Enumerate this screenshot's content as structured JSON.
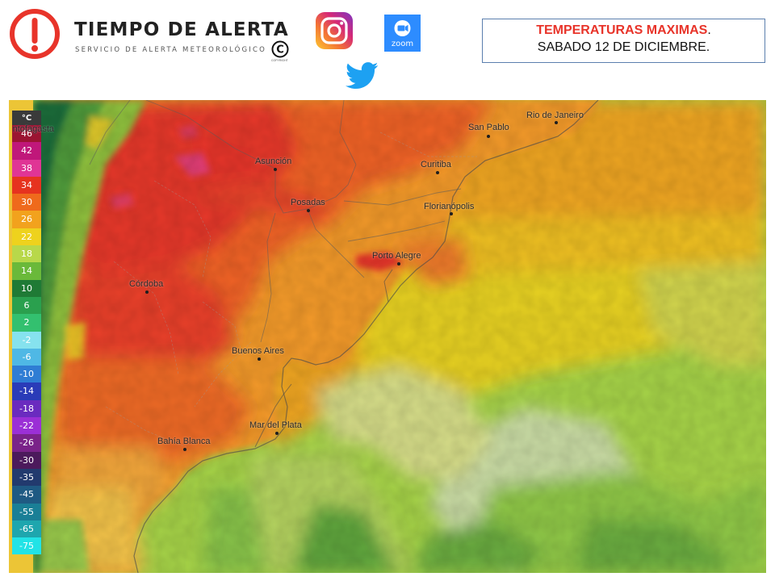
{
  "header": {
    "brand_title": "TIEMPO DE ALERTA",
    "brand_subtitle": "SERVICIO DE ALERTA METEOROLÓGICO",
    "copyright_symbol": "©",
    "copyright_text": "COPYRIGHT",
    "zoom_label": "zoom",
    "social_icons": [
      "instagram-icon",
      "zoom-icon",
      "twitter-icon"
    ],
    "brand_color": "#e8342a"
  },
  "title_box": {
    "highlight": "TEMPERATURAS MAXIMAS",
    "highlight_suffix": ".",
    "date": "SABADO 12 DE DICIEMBRE."
  },
  "legend": {
    "unit": "°C",
    "items": [
      {
        "label": "46",
        "color": "#9b1432"
      },
      {
        "label": "42",
        "color": "#c0177a"
      },
      {
        "label": "38",
        "color": "#e03595"
      },
      {
        "label": "34",
        "color": "#e6331f"
      },
      {
        "label": "30",
        "color": "#ef6a1c"
      },
      {
        "label": "26",
        "color": "#f2a21d"
      },
      {
        "label": "22",
        "color": "#eed21d"
      },
      {
        "label": "18",
        "color": "#b8d84a"
      },
      {
        "label": "14",
        "color": "#6ab93a"
      },
      {
        "label": "10",
        "color": "#1f7a35"
      },
      {
        "label": "6",
        "color": "#2aa04e"
      },
      {
        "label": "2",
        "color": "#33c06f"
      },
      {
        "label": "-2",
        "color": "#86e2ee"
      },
      {
        "label": "-6",
        "color": "#4fb8e5"
      },
      {
        "label": "-10",
        "color": "#2f7dd4"
      },
      {
        "label": "-14",
        "color": "#2a3bb8"
      },
      {
        "label": "-18",
        "color": "#6a2bbf"
      },
      {
        "label": "-22",
        "color": "#9b2fd6"
      },
      {
        "label": "-26",
        "color": "#7a2389"
      },
      {
        "label": "-30",
        "color": "#4c1a5c"
      },
      {
        "label": "-35",
        "color": "#223a6e"
      },
      {
        "label": "-45",
        "color": "#1f5a83"
      },
      {
        "label": "-55",
        "color": "#1a7f96"
      },
      {
        "label": "-65",
        "color": "#1ea6ae"
      },
      {
        "label": "-75",
        "color": "#22e3e6"
      }
    ]
  },
  "cities": [
    "Asunción",
    "Posadas",
    "San Pablo",
    "Rio de Janeiro",
    "Curitiba",
    "Florianópolis",
    "Porto Alegre",
    "Córdoba",
    "Buenos Aires",
    "Mar del Plata",
    "Bahía Blanca"
  ],
  "partial_label": "Antofagasta"
}
